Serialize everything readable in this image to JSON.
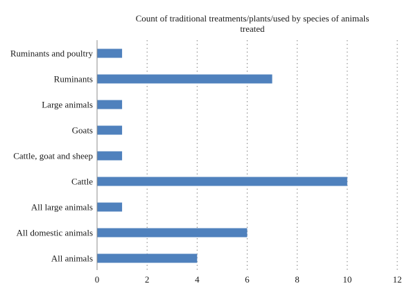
{
  "chart_data": {
    "type": "bar",
    "orientation": "horizontal",
    "title": "Count of traditional treatments/plants/used by species of animals treated",
    "title_lines": [
      "Count of traditional treatments/plants/used by species of animals",
      "treated"
    ],
    "xlabel": "",
    "ylabel": "",
    "categories": [
      "Ruminants and poultry",
      "Ruminants",
      "Large animals",
      "Goats",
      "Cattle, goat and sheep",
      "Cattle",
      "All large animals",
      "All domestic animals",
      "All animals"
    ],
    "values": [
      1,
      7,
      1,
      1,
      1,
      10,
      1,
      6,
      4
    ],
    "xlim": [
      0,
      12
    ],
    "xticks": [
      0,
      2,
      4,
      6,
      8,
      10,
      12
    ],
    "grid": "vertical-dotted",
    "legend": "none",
    "bar_color": "#4f81bd"
  }
}
